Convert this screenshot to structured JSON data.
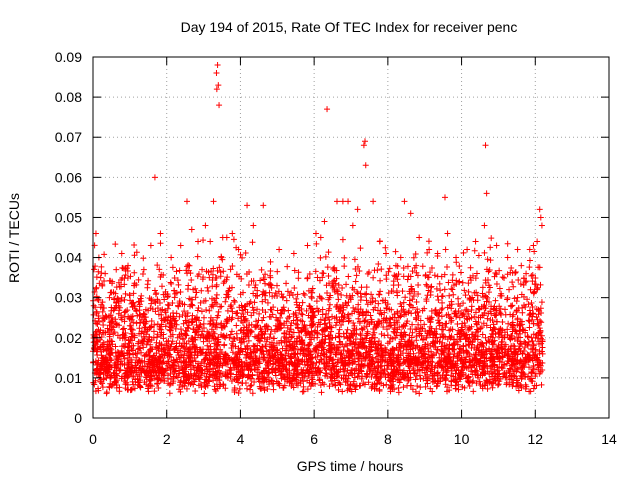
{
  "chart_data": {
    "type": "scatter",
    "title": "Day 194 of 2015, Rate Of TEC Index for receiver penc",
    "xlabel": "GPS time / hours",
    "ylabel": "ROTI / TECUs",
    "xlim": [
      0,
      14
    ],
    "ylim": [
      0,
      0.09
    ],
    "x_ticks": [
      0,
      2,
      4,
      6,
      8,
      10,
      12,
      14
    ],
    "x_tick_labels": [
      "0",
      "2",
      "4",
      "6",
      "8",
      "10",
      "12",
      "14"
    ],
    "y_ticks": [
      0,
      0.01,
      0.02,
      0.03,
      0.04,
      0.05,
      0.06,
      0.07,
      0.08,
      0.09
    ],
    "y_tick_labels": [
      "0",
      "0.01",
      "0.02",
      "0.03",
      "0.04",
      "0.05",
      "0.06",
      "0.07",
      "0.08",
      "0.09"
    ],
    "grid": true,
    "marker": "+",
    "series_color": "#ff0000",
    "x_extent": [
      0,
      12.2
    ],
    "series": [
      {
        "x": [
          0.05,
          0.1,
          0.15,
          0.2,
          0.25,
          0.3,
          0.35,
          0.4,
          0.45,
          0.5,
          0.55,
          0.6,
          0.65,
          0.7,
          0.75,
          0.8,
          0.85,
          0.9,
          0.95,
          1.0,
          1.05,
          1.1,
          1.15,
          1.2,
          1.25,
          1.3,
          1.35,
          1.4,
          1.45,
          1.5,
          1.55,
          1.6,
          1.65,
          1.7,
          1.75,
          1.8,
          1.85,
          1.9,
          1.95,
          2.0,
          2.05,
          2.1,
          2.15,
          2.2,
          2.25,
          2.3,
          2.35,
          2.4,
          2.45,
          2.5,
          2.55,
          2.6,
          2.65,
          2.7,
          2.75,
          2.8,
          2.85,
          2.9,
          2.95,
          3.0,
          3.05,
          3.1,
          3.15,
          3.2,
          3.25,
          3.3,
          3.35,
          3.4,
          3.45,
          3.5,
          3.55,
          3.6,
          3.65,
          3.7,
          3.75,
          3.8,
          3.85,
          3.9,
          3.95,
          4.0,
          4.05,
          4.1,
          4.15,
          4.2,
          4.25,
          4.3,
          4.35,
          4.4,
          4.45,
          4.5,
          4.55,
          4.6,
          4.65,
          4.7,
          4.75,
          4.8,
          4.85,
          4.9,
          4.95,
          5.0,
          5.05,
          5.1,
          5.15,
          5.2,
          5.25,
          5.3,
          5.35,
          5.4,
          5.45,
          5.5,
          5.55,
          5.6,
          5.65,
          5.7,
          5.75,
          5.8,
          5.85,
          5.9,
          5.95,
          6.0,
          6.05,
          6.1,
          6.15,
          6.2,
          6.25,
          6.3,
          6.35,
          6.4,
          6.45,
          6.5,
          6.55,
          6.6,
          6.65,
          6.7,
          6.75,
          6.8,
          6.85,
          6.9,
          6.95,
          7.0,
          7.05,
          7.1,
          7.15,
          7.2,
          7.25,
          7.3,
          7.35,
          7.4,
          7.45,
          7.5,
          7.55,
          7.6,
          7.65,
          7.7,
          7.75,
          7.8,
          7.85,
          7.9,
          7.95,
          8.0,
          8.05,
          8.1,
          8.15,
          8.2,
          8.25,
          8.3,
          8.35,
          8.4,
          8.45,
          8.5,
          8.55,
          8.6,
          8.65,
          8.7,
          8.75,
          8.8,
          8.85,
          8.9,
          8.95,
          9.0,
          9.05,
          9.1,
          9.15,
          9.2,
          9.25,
          9.3,
          9.35,
          9.4,
          9.45,
          9.5,
          9.55,
          9.6,
          9.65,
          9.7,
          9.75,
          9.8,
          9.85,
          9.9,
          9.95,
          10.0,
          10.05,
          10.1,
          10.15,
          10.2,
          10.25,
          10.3,
          10.35,
          10.4,
          10.45,
          10.5,
          10.55,
          10.6,
          10.65,
          10.7,
          10.75,
          10.8,
          10.85,
          10.9,
          10.95,
          11.0,
          11.05,
          11.1,
          11.15,
          11.2,
          11.25,
          11.3,
          11.35,
          11.4,
          11.45,
          11.5,
          11.55,
          11.6,
          11.65,
          11.7,
          11.75,
          11.8,
          11.85,
          11.9,
          11.95,
          12.0,
          12.05,
          12.1,
          12.15,
          12.2,
          0.02,
          0.08,
          0.16,
          0.33,
          0.52,
          0.78,
          0.95,
          1.12,
          1.38,
          1.57,
          1.68,
          1.83,
          2.12,
          2.38,
          2.55,
          2.68,
          2.85,
          3.05,
          3.18,
          3.27,
          3.35,
          3.38,
          3.4,
          3.36,
          3.42,
          3.52,
          3.63,
          3.78,
          3.95,
          4.18,
          4.35,
          4.62,
          5.05,
          5.45,
          5.82,
          6.05,
          6.18,
          6.28,
          6.35,
          6.62,
          6.78,
          6.92,
          7.05,
          7.18,
          7.35,
          7.38,
          7.4,
          7.6,
          7.78,
          7.95,
          8.22,
          8.35,
          8.45,
          8.62,
          8.85,
          9.12,
          9.35,
          9.55,
          9.62,
          9.85,
          10.15,
          10.38,
          10.62,
          10.65,
          10.68,
          10.95,
          11.25,
          11.52,
          11.62,
          11.75,
          11.85,
          11.95,
          12.05,
          12.12,
          12.15,
          12.18
        ],
        "y": [
          0.018,
          0.012,
          0.022,
          0.009,
          0.015,
          0.025,
          0.011,
          0.019,
          0.013,
          0.017,
          0.021,
          0.01,
          0.014,
          0.026,
          0.012,
          0.016,
          0.02,
          0.011,
          0.015,
          0.023,
          0.013,
          0.018,
          0.009,
          0.016,
          0.021,
          0.012,
          0.019,
          0.014,
          0.024,
          0.011,
          0.017,
          0.013,
          0.02,
          0.015,
          0.01,
          0.018,
          0.022,
          0.012,
          0.016,
          0.019,
          0.014,
          0.011,
          0.023,
          0.017,
          0.013,
          0.02,
          0.015,
          0.018,
          0.012,
          0.021,
          0.016,
          0.024,
          0.013,
          0.019,
          0.015,
          0.011,
          0.022,
          0.017,
          0.014,
          0.02,
          0.016,
          0.018,
          0.012,
          0.025,
          0.015,
          0.021,
          0.013,
          0.019,
          0.017,
          0.011,
          0.023,
          0.016,
          0.014,
          0.02,
          0.012,
          0.018,
          0.015,
          0.021,
          0.013,
          0.017,
          0.011,
          0.019,
          0.015,
          0.022,
          0.013,
          0.016,
          0.018,
          0.012,
          0.02,
          0.014,
          0.017,
          0.011,
          0.015,
          0.019,
          0.013,
          0.016,
          0.012,
          0.018,
          0.014,
          0.017,
          0.013,
          0.015,
          0.011,
          0.019,
          0.012,
          0.016,
          0.014,
          0.018,
          0.011,
          0.015,
          0.013,
          0.02,
          0.012,
          0.016,
          0.022,
          0.014,
          0.018,
          0.025,
          0.015,
          0.02,
          0.017,
          0.021,
          0.014,
          0.019,
          0.016,
          0.022,
          0.013,
          0.018,
          0.015,
          0.02,
          0.012,
          0.017,
          0.014,
          0.019,
          0.016,
          0.021,
          0.013,
          0.018,
          0.015,
          0.02,
          0.017,
          0.014,
          0.022,
          0.016,
          0.019,
          0.013,
          0.018,
          0.015,
          0.021,
          0.012,
          0.017,
          0.014,
          0.02,
          0.016,
          0.013,
          0.018,
          0.015,
          0.011,
          0.017,
          0.014,
          0.019,
          0.013,
          0.016,
          0.02,
          0.012,
          0.015,
          0.018,
          0.011,
          0.014,
          0.017,
          0.013,
          0.016,
          0.019,
          0.012,
          0.015,
          0.018,
          0.014,
          0.017,
          0.013,
          0.016,
          0.02,
          0.014,
          0.018,
          0.015,
          0.021,
          0.013,
          0.017,
          0.019,
          0.016,
          0.022,
          0.014,
          0.018,
          0.015,
          0.02,
          0.013,
          0.017,
          0.019,
          0.016,
          0.021,
          0.015,
          0.018,
          0.014,
          0.02,
          0.016,
          0.013,
          0.019,
          0.015,
          0.017,
          0.022,
          0.014,
          0.018,
          0.016,
          0.02,
          0.013,
          0.017,
          0.015,
          0.019,
          0.014,
          0.016,
          0.018,
          0.015,
          0.019,
          0.013,
          0.017,
          0.016,
          0.02,
          0.014,
          0.018,
          0.015,
          0.021,
          0.017,
          0.023,
          0.016,
          0.019,
          0.014,
          0.018,
          0.015,
          0.02,
          0.013,
          0.017,
          0.015,
          0.019,
          0.013,
          0.016,
          0.028,
          0.046,
          0.04,
          0.036,
          0.034,
          0.041,
          0.038,
          0.033,
          0.037,
          0.043,
          0.06,
          0.046,
          0.04,
          0.043,
          0.054,
          0.047,
          0.044,
          0.048,
          0.044,
          0.054,
          0.086,
          0.088,
          0.083,
          0.082,
          0.078,
          0.045,
          0.045,
          0.046,
          0.042,
          0.053,
          0.048,
          0.053,
          0.042,
          0.041,
          0.043,
          0.046,
          0.045,
          0.049,
          0.077,
          0.054,
          0.054,
          0.054,
          0.048,
          0.052,
          0.068,
          0.069,
          0.063,
          0.054,
          0.044,
          0.041,
          0.038,
          0.04,
          0.054,
          0.051,
          0.045,
          0.042,
          0.041,
          0.055,
          0.046,
          0.04,
          0.042,
          0.044,
          0.048,
          0.068,
          0.056,
          0.043,
          0.04,
          0.042,
          0.038,
          0.036,
          0.042,
          0.043,
          0.044,
          0.052,
          0.05,
          0.048
        ]
      }
    ]
  }
}
